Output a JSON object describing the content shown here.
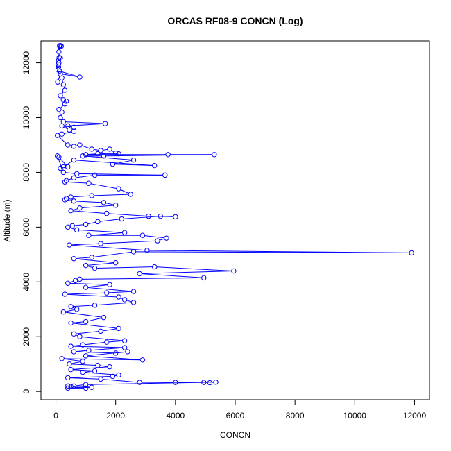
{
  "chart_data": {
    "type": "scatter",
    "title": "ORCAS RF08-9 CONCN (Log)",
    "xlabel": "CONCN",
    "ylabel": "Altitude (m)",
    "xlim": [
      -500,
      12500
    ],
    "ylim": [
      -300,
      12800
    ],
    "xticks": [
      0,
      2000,
      4000,
      6000,
      8000,
      10000,
      12000
    ],
    "yticks": [
      0,
      2000,
      4000,
      6000,
      8000,
      10000,
      12000
    ],
    "grid": false,
    "legend": "none",
    "connected": true,
    "marker": "open-circle",
    "color": "#0000ff",
    "series": [
      {
        "points": [
          [
            120,
            12620
          ],
          [
            150,
            12630
          ],
          [
            180,
            12610
          ],
          [
            130,
            12600
          ],
          [
            100,
            12400
          ],
          [
            110,
            12200
          ],
          [
            150,
            12180
          ],
          [
            90,
            12100
          ],
          [
            100,
            12000
          ],
          [
            80,
            11950
          ],
          [
            90,
            11850
          ],
          [
            70,
            11750
          ],
          [
            120,
            11700
          ],
          [
            800,
            11480
          ],
          [
            150,
            11600
          ],
          [
            60,
            11300
          ],
          [
            200,
            11450
          ],
          [
            250,
            11200
          ],
          [
            300,
            11000
          ],
          [
            150,
            10800
          ],
          [
            250,
            10650
          ],
          [
            350,
            10600
          ],
          [
            300,
            10500
          ],
          [
            100,
            10300
          ],
          [
            200,
            10200
          ],
          [
            150,
            10000
          ],
          [
            250,
            9850
          ],
          [
            1650,
            9780
          ],
          [
            400,
            9700
          ],
          [
            600,
            9650
          ],
          [
            200,
            9700
          ],
          [
            450,
            9550
          ],
          [
            600,
            9500
          ],
          [
            200,
            9400
          ],
          [
            50,
            9350
          ],
          [
            400,
            9000
          ],
          [
            600,
            8950
          ],
          [
            800,
            9000
          ],
          [
            1200,
            8850
          ],
          [
            1500,
            8800
          ],
          [
            1800,
            8850
          ],
          [
            2000,
            8700
          ],
          [
            2100,
            8680
          ],
          [
            1400,
            8680
          ],
          [
            1000,
            8650
          ],
          [
            3750,
            8650
          ],
          [
            5300,
            8650
          ],
          [
            1600,
            8600
          ],
          [
            900,
            8600
          ],
          [
            2600,
            8450
          ],
          [
            1900,
            8300
          ],
          [
            3300,
            8250
          ],
          [
            600,
            8450
          ],
          [
            250,
            8200
          ],
          [
            150,
            8150
          ],
          [
            400,
            8200
          ],
          [
            100,
            8550
          ],
          [
            50,
            8600
          ],
          [
            250,
            8000
          ],
          [
            700,
            7950
          ],
          [
            3650,
            7900
          ],
          [
            1300,
            7900
          ],
          [
            600,
            7800
          ],
          [
            350,
            7700
          ],
          [
            300,
            7650
          ],
          [
            1100,
            7600
          ],
          [
            2100,
            7400
          ],
          [
            2500,
            7200
          ],
          [
            1200,
            7150
          ],
          [
            500,
            7100
          ],
          [
            350,
            7050
          ],
          [
            300,
            7000
          ],
          [
            600,
            6950
          ],
          [
            1600,
            6900
          ],
          [
            2000,
            6800
          ],
          [
            800,
            6700
          ],
          [
            500,
            6600
          ],
          [
            1700,
            6500
          ],
          [
            3100,
            6400
          ],
          [
            4000,
            6380
          ],
          [
            3500,
            6400
          ],
          [
            2200,
            6300
          ],
          [
            1400,
            6200
          ],
          [
            1000,
            6100
          ],
          [
            550,
            6050
          ],
          [
            400,
            6000
          ],
          [
            700,
            5900
          ],
          [
            2300,
            5800
          ],
          [
            1100,
            5700
          ],
          [
            2900,
            5700
          ],
          [
            3700,
            5600
          ],
          [
            3400,
            5500
          ],
          [
            1500,
            5400
          ],
          [
            450,
            5350
          ],
          [
            3050,
            5150
          ],
          [
            11900,
            5060
          ],
          [
            2600,
            5100
          ],
          [
            1200,
            4900
          ],
          [
            600,
            4850
          ],
          [
            2000,
            4700
          ],
          [
            1000,
            4600
          ],
          [
            1300,
            4500
          ],
          [
            3300,
            4550
          ],
          [
            5950,
            4400
          ],
          [
            2800,
            4300
          ],
          [
            4950,
            4150
          ],
          [
            800,
            4100
          ],
          [
            650,
            4050
          ],
          [
            400,
            3950
          ],
          [
            1800,
            3900
          ],
          [
            1000,
            3800
          ],
          [
            2600,
            3650
          ],
          [
            1700,
            3600
          ],
          [
            300,
            3550
          ],
          [
            2100,
            3450
          ],
          [
            2300,
            3350
          ],
          [
            2600,
            3250
          ],
          [
            1300,
            3150
          ],
          [
            500,
            3100
          ],
          [
            700,
            3000
          ],
          [
            250,
            2900
          ],
          [
            1600,
            2700
          ],
          [
            1000,
            2550
          ],
          [
            500,
            2500
          ],
          [
            2100,
            2300
          ],
          [
            1500,
            2200
          ],
          [
            600,
            2100
          ],
          [
            800,
            2000
          ],
          [
            2300,
            1850
          ],
          [
            1700,
            1800
          ],
          [
            900,
            1700
          ],
          [
            500,
            1650
          ],
          [
            2300,
            1600
          ],
          [
            1100,
            1500
          ],
          [
            600,
            1450
          ],
          [
            2000,
            1400
          ],
          [
            2400,
            1450
          ],
          [
            1000,
            1300
          ],
          [
            2900,
            1150
          ],
          [
            200,
            1200
          ],
          [
            900,
            1100
          ],
          [
            450,
            1000
          ],
          [
            1400,
            950
          ],
          [
            1800,
            900
          ],
          [
            500,
            800
          ],
          [
            1300,
            750
          ],
          [
            900,
            700
          ],
          [
            2100,
            600
          ],
          [
            1900,
            550
          ],
          [
            400,
            500
          ],
          [
            1500,
            450
          ],
          [
            2800,
            330
          ],
          [
            4000,
            330
          ],
          [
            4950,
            330
          ],
          [
            5150,
            320
          ],
          [
            5350,
            340
          ],
          [
            1000,
            250
          ],
          [
            600,
            200
          ],
          [
            1200,
            150
          ],
          [
            400,
            120
          ],
          [
            1000,
            120
          ],
          [
            500,
            180
          ],
          [
            400,
            200
          ]
        ]
      }
    ]
  }
}
